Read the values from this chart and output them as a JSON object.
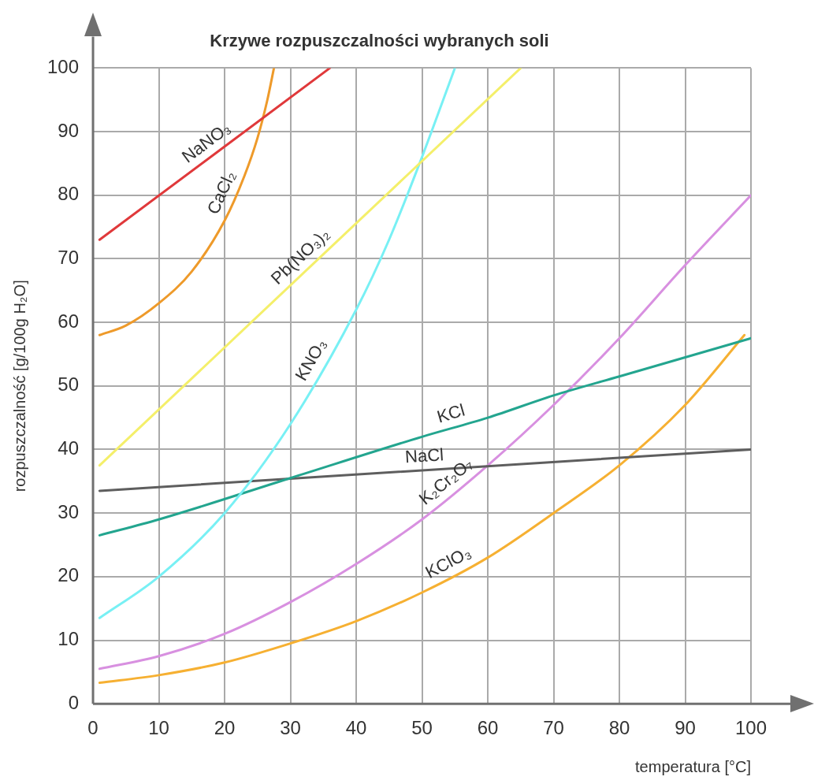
{
  "chart_data": {
    "type": "line",
    "title": "Krzywe rozpuszczalności wybranych soli",
    "xlabel": "temperatura [°C]",
    "ylabel": "rozpuszczalność [g/100g H₂O]",
    "xlim": [
      0,
      100
    ],
    "ylim": [
      0,
      100
    ],
    "xticks": [
      0,
      10,
      20,
      30,
      40,
      50,
      60,
      70,
      80,
      90,
      100
    ],
    "yticks": [
      0,
      10,
      20,
      30,
      40,
      50,
      60,
      70,
      80,
      90,
      100
    ],
    "grid": true,
    "legend": false,
    "marker": "none",
    "line_style": "solid",
    "series": [
      {
        "name": "NaNO₃",
        "color": "#e0393b",
        "x": [
          1,
          36
        ],
        "values": [
          73,
          100
        ]
      },
      {
        "name": "CaCl₂",
        "color": "#ee9a2a",
        "x": [
          1,
          5,
          10,
          15,
          20,
          23,
          25,
          26.5,
          27.5
        ],
        "values": [
          58,
          59.5,
          63,
          68,
          76,
          83,
          89,
          95,
          100
        ]
      },
      {
        "name": "Pb(NO₃)₂",
        "color": "#f4ef6a",
        "x": [
          1,
          65
        ],
        "values": [
          37.5,
          100
        ]
      },
      {
        "name": "KNO₃",
        "color": "#78f0f4",
        "x": [
          1,
          10,
          20,
          30,
          40,
          45,
          50,
          55
        ],
        "values": [
          13.5,
          20,
          30,
          44,
          62,
          73,
          86,
          100
        ]
      },
      {
        "name": "KCl",
        "color": "#23a58f",
        "x": [
          1,
          10,
          30,
          50,
          60,
          70,
          80,
          100
        ],
        "values": [
          26.5,
          29,
          35.5,
          42,
          45,
          48.5,
          51.5,
          57.5
        ]
      },
      {
        "name": "NaCl",
        "color": "#5e5e5e",
        "x": [
          1,
          100
        ],
        "values": [
          33.5,
          40
        ]
      },
      {
        "name": "K₂Cr₂O₇",
        "color": "#d890e0",
        "x": [
          1,
          10,
          20,
          30,
          40,
          50,
          60,
          70,
          80,
          90,
          100
        ],
        "values": [
          5.5,
          7.5,
          11,
          16,
          22,
          29,
          37.5,
          47,
          57.5,
          69,
          80
        ]
      },
      {
        "name": "KClO₃",
        "color": "#f6b032",
        "x": [
          1,
          10,
          20,
          30,
          40,
          50,
          60,
          70,
          80,
          90,
          99
        ],
        "values": [
          3.3,
          4.5,
          6.5,
          9.5,
          13,
          17.5,
          23,
          30,
          37.5,
          47,
          58
        ]
      }
    ]
  }
}
